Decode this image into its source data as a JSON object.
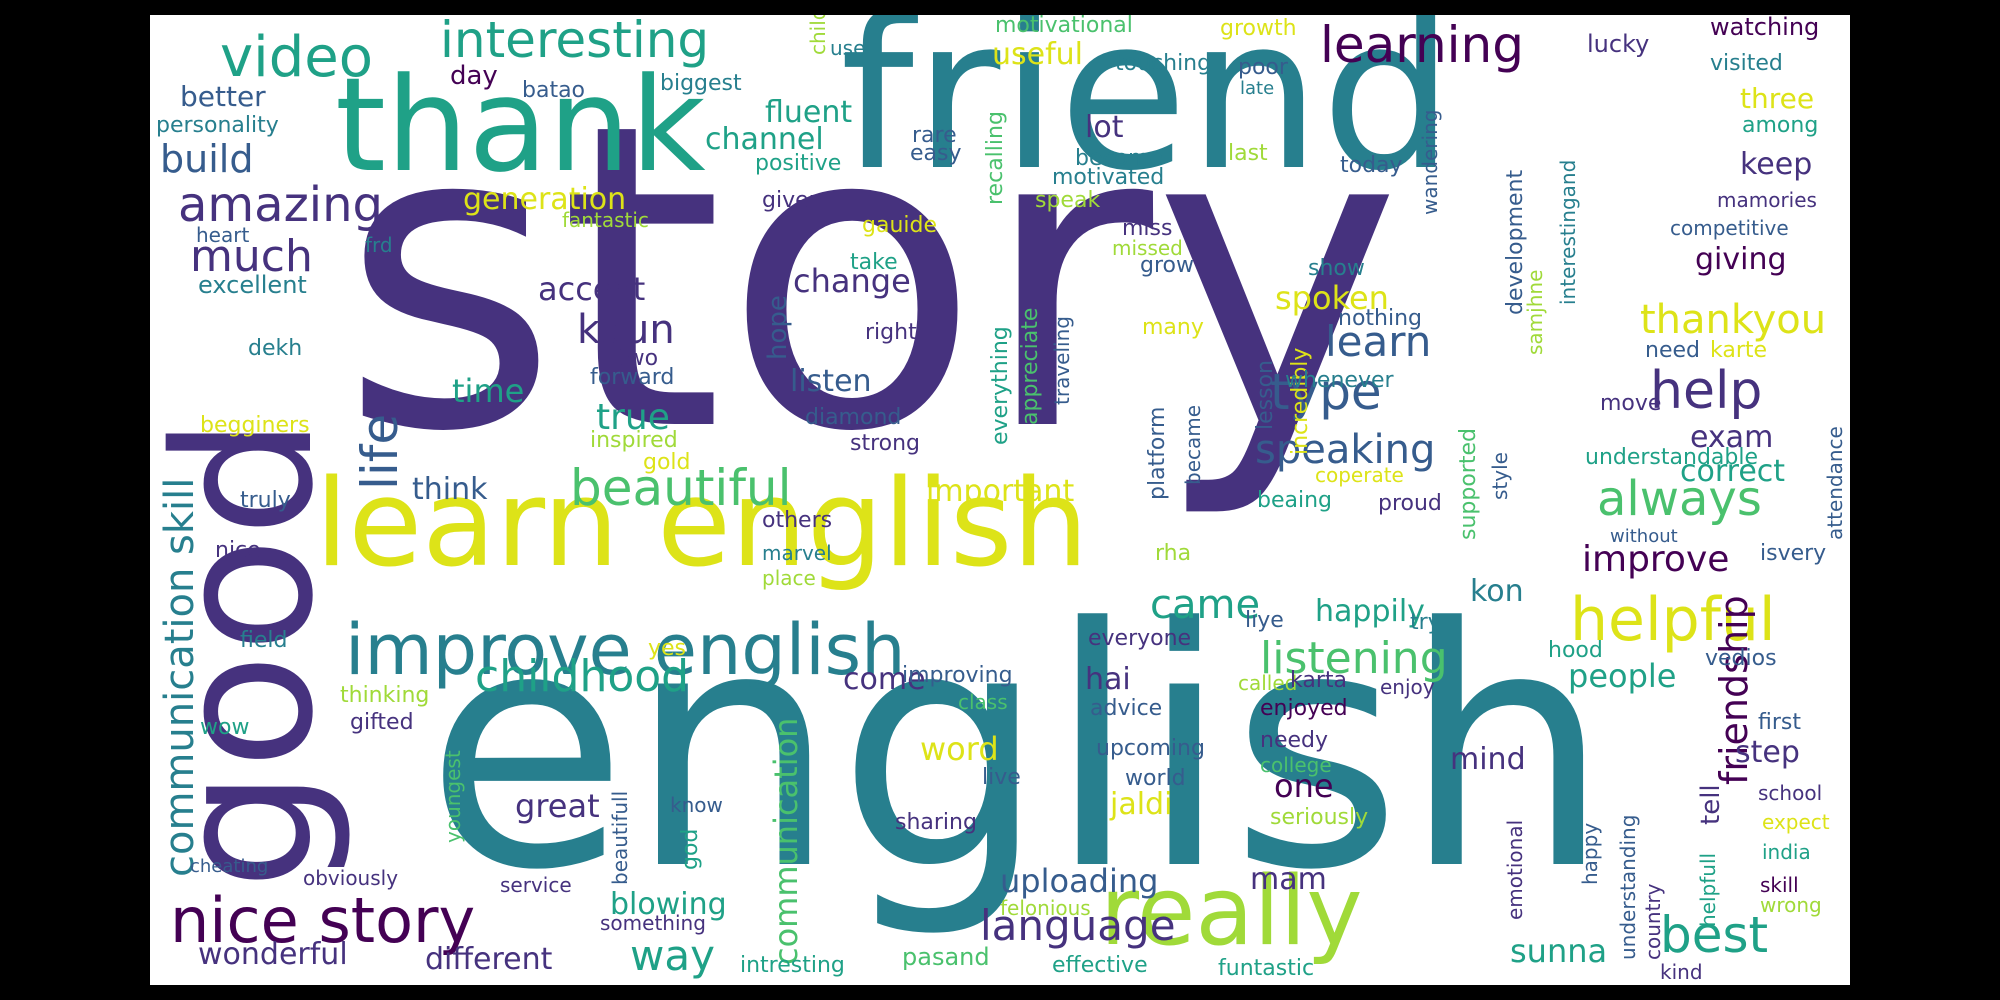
{
  "words": {
    "story": "story",
    "english_big": "english",
    "friend": "friend",
    "thank": "thank",
    "good": "good",
    "learn_english": "learn english",
    "really": "really",
    "improve_english": "improve english",
    "nice_story": "nice story",
    "helpful": "helpful",
    "video": "video",
    "interesting": "interesting",
    "learning": "learning",
    "amazing": "amazing",
    "much": "much",
    "build": "build",
    "life": "life",
    "beautiful": "beautiful",
    "childhood": "childhood",
    "communication_skill": "communication skill",
    "help": "help",
    "type": "type",
    "learn": "learn",
    "speaking": "speaking",
    "always": "always",
    "improve": "improve",
    "best": "best",
    "language": "language",
    "listening": "listening",
    "thankyou": "thankyou",
    "friendship": "friendship",
    "communication": "communication",
    "wonderful": "wonderful",
    "different": "different",
    "way": "way",
    "blowing": "blowing",
    "uploading": "uploading",
    "sunna": "sunna",
    "mam": "mam",
    "came": "came",
    "kaun": "kaun",
    "accent": "accent",
    "change": "change",
    "lot": "lot",
    "channel": "channel",
    "fluent": "fluent",
    "generation": "generation",
    "time": "time",
    "true": "true",
    "listen": "listen",
    "think": "think",
    "important": "important",
    "correct": "correct",
    "exam": "exam",
    "keep": "keep",
    "giving": "giving",
    "spoken": "spoken",
    "one": "one",
    "mind": "mind",
    "great": "great",
    "come": "come",
    "hai": "hai",
    "happily": "happily",
    "kon": "kon",
    "word": "word",
    "jaldi": "jaldi",
    "step": "step",
    "people": "people",
    "useful": "useful",
    "day": "day",
    "better": "better",
    "personality": "personality",
    "three": "three",
    "batao": "batao",
    "biggest": "biggest",
    "positive": "positive",
    "easy": "easy",
    "rare": "rare",
    "recalling": "recalling",
    "become": "become",
    "motivated": "motivated",
    "motivational": "motivational",
    "growth": "growth",
    "touching": "touching",
    "poor": "poor",
    "late": "late",
    "last": "last",
    "today": "today",
    "wandering": "wandering",
    "development": "development",
    "interestingand": "interestingand",
    "lucky": "lucky",
    "watching": "watching",
    "visited": "visited",
    "among": "among",
    "mamories": "mamories",
    "competitive": "competitive",
    "use": "use",
    "child": "child",
    "heart": "heart",
    "frd": "frd",
    "excellent": "excellent",
    "fantastic": "fantastic",
    "given": "given",
    "speak": "speak",
    "gauide": "gauide",
    "miss": "miss",
    "missed": "missed",
    "grow": "grow",
    "take": "take",
    "show": "show",
    "samjhne": "samjhne",
    "incredibly": "incredibly",
    "lesson": "lesson",
    "dekh": "dekh",
    "two": "two",
    "forward": "forward",
    "hope": "hope",
    "right": "right",
    "everything": "everything",
    "appreciate": "appreciate",
    "traveling": "traveling",
    "many": "many",
    "nothing": "nothing",
    "whenever": "whenever",
    "platform": "platform",
    "need": "need",
    "karte": "karte",
    "diamond": "diamond",
    "strong": "strong",
    "begginers": "begginers",
    "inspired": "inspired",
    "gold": "gold",
    "became": "became",
    "supported": "supported",
    "style": "style",
    "move": "move",
    "attendance": "attendance",
    "understandable": "understandable",
    "coperate": "coperate",
    "beaing": "beaing",
    "proud": "proud",
    "truly": "truly",
    "others": "others",
    "marvel": "marvel",
    "place": "place",
    "rha": "rha",
    "without": "without",
    "isvery": "isvery",
    "nice": "nice",
    "field": "field",
    "yes": "yes",
    "everyone": "everyone",
    "liye": "liye",
    "try": "try",
    "hood": "hood",
    "vedios": "vedios",
    "thinking": "thinking",
    "wow": "wow",
    "gifted": "gifted",
    "improving": "improving",
    "class": "class",
    "advice": "advice",
    "called": "called",
    "karta": "karta",
    "enjoy": "enjoy",
    "enjoyed": "enjoyed",
    "needy": "needy",
    "upcoming": "upcoming",
    "world": "world",
    "college": "college",
    "first": "first",
    "tell": "tell",
    "youngest": "youngest",
    "know": "know",
    "beautifull": "beautifull",
    "god": "god",
    "live": "live",
    "sharing": "sharing",
    "seriously": "seriously",
    "emotional": "emotional",
    "happy": "happy",
    "understanding": "understanding",
    "country": "country",
    "helpfull": "helpfull",
    "school": "school",
    "expect": "expect",
    "india": "india",
    "skill": "skill",
    "cheating": "cheating",
    "obviously": "obviously",
    "service": "service",
    "something": "something",
    "felonious": "felonious",
    "wrong": "wrong",
    "intresting": "intresting",
    "pasand": "pasand",
    "effective": "effective",
    "funtastic": "funtastic",
    "kind": "kind"
  },
  "palette": [
    "#440154",
    "#46327e",
    "#365c8d",
    "#277f8e",
    "#1fa187",
    "#4ac16d",
    "#a0da39",
    "#dde318"
  ]
}
